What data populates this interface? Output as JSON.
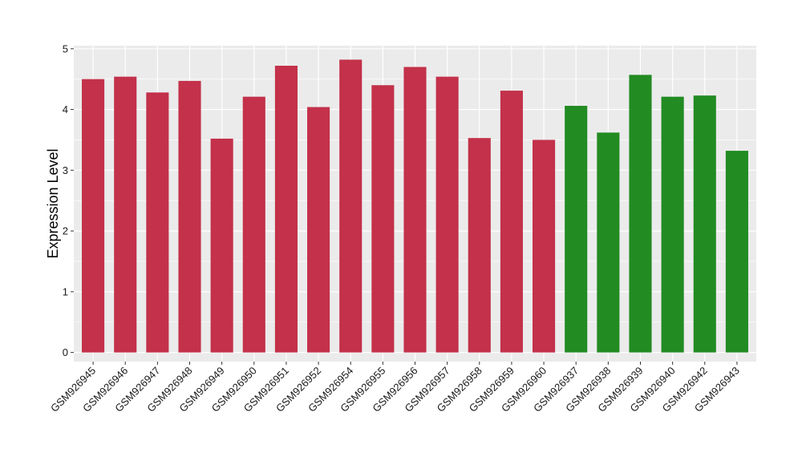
{
  "chart_data": {
    "type": "bar",
    "title": "",
    "xlabel": "",
    "ylabel": "Expression Level",
    "ylim": [
      -0.15,
      5.05
    ],
    "y_ticks": [
      0,
      1,
      2,
      3,
      4,
      5
    ],
    "grid": true,
    "legend": "none",
    "colors": {
      "group_1": "#c3314a",
      "group_2": "#228b22",
      "panel_bg": "#ebebeb",
      "grid": "#ffffff"
    },
    "categories": [
      "GSM926945",
      "GSM926946",
      "GSM926947",
      "GSM926948",
      "GSM926949",
      "GSM926950",
      "GSM926951",
      "GSM926952",
      "GSM926954",
      "GSM926955",
      "GSM926956",
      "GSM926957",
      "GSM926958",
      "GSM926959",
      "GSM926960",
      "GSM926937",
      "GSM926938",
      "GSM926939",
      "GSM926940",
      "GSM926942",
      "GSM926943"
    ],
    "values": [
      4.5,
      4.54,
      4.28,
      4.47,
      3.52,
      4.21,
      4.72,
      4.04,
      4.82,
      4.4,
      4.7,
      4.54,
      3.53,
      4.31,
      3.5,
      4.06,
      3.62,
      4.57,
      4.21,
      4.23,
      3.32
    ],
    "groups": [
      "group_1",
      "group_1",
      "group_1",
      "group_1",
      "group_1",
      "group_1",
      "group_1",
      "group_1",
      "group_1",
      "group_1",
      "group_1",
      "group_1",
      "group_1",
      "group_1",
      "group_1",
      "group_2",
      "group_2",
      "group_2",
      "group_2",
      "group_2",
      "group_2"
    ]
  }
}
